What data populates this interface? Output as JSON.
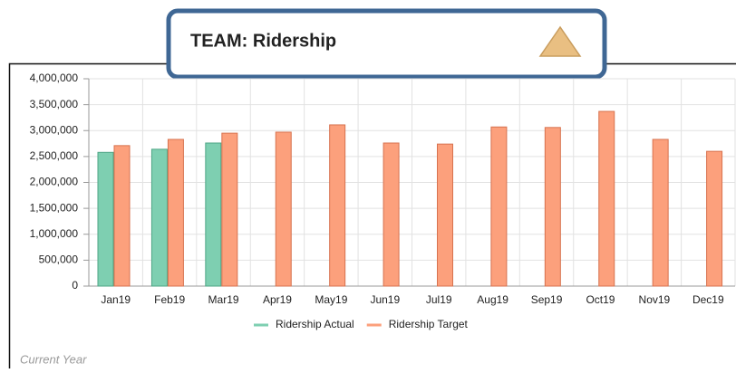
{
  "header": {
    "title": "TEAM: Ridership"
  },
  "footer": {
    "note": "Current Year"
  },
  "chart_data": {
    "type": "bar",
    "categories": [
      "Jan19",
      "Feb19",
      "Mar19",
      "Apr19",
      "May19",
      "Jun19",
      "Jul19",
      "Aug19",
      "Sep19",
      "Oct19",
      "Nov19",
      "Dec19"
    ],
    "series": [
      {
        "name": "Ridership Actual",
        "color": "#7ecfb1",
        "values": [
          2580000,
          2640000,
          2760000,
          null,
          null,
          null,
          null,
          null,
          null,
          null,
          null,
          null
        ]
      },
      {
        "name": "Ridership Target",
        "color": "#fca07c",
        "values": [
          2710000,
          2830000,
          2950000,
          2970000,
          3110000,
          2760000,
          2740000,
          3070000,
          3060000,
          3370000,
          2830000,
          2600000
        ]
      }
    ],
    "ylim": [
      0,
      4000000
    ],
    "yticks": [
      0,
      {
        "value": 500000,
        "label": "500,000"
      },
      {
        "value": 1000000,
        "label": "1,000,000"
      },
      {
        "value": 1500000,
        "label": "1,500,000"
      },
      {
        "value": 2000000,
        "label": "2,000,000"
      },
      {
        "value": 2500000,
        "label": "2,500,000"
      },
      {
        "value": 3000000,
        "label": "3,000,000"
      },
      {
        "value": 3500000,
        "label": "3,500,000"
      },
      {
        "value": 4000000,
        "label": "4,000,000"
      }
    ],
    "grid": true,
    "legend": "bottom"
  }
}
